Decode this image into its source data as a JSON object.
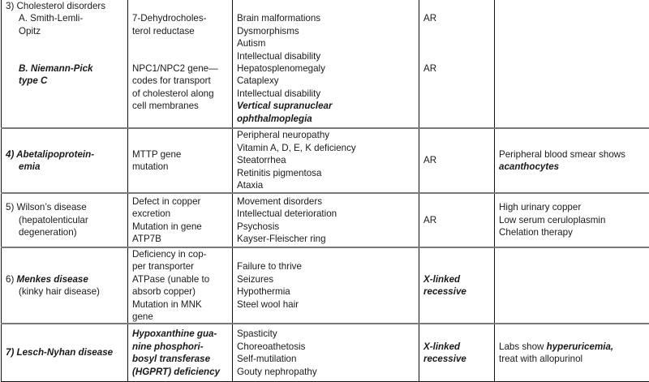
{
  "table": {
    "rows": [
      {
        "cells": [
          [
            [
              {
                "t": "3) Cholesterol disorders"
              }
            ],
            [
              {
                "t": "A. Smith-Lemli-",
                "i": 1
              }
            ],
            [
              {
                "t": "Opitz",
                "i": 1
              }
            ],
            [],
            [],
            [
              {
                "t": "B. Niemann-Pick",
                "i": 1,
                "b": 1
              }
            ],
            [
              {
                "t": "type C",
                "i": 1,
                "b": 1
              }
            ]
          ],
          [
            [],
            [
              {
                "t": "7-Dehydrocholes-"
              }
            ],
            [
              {
                "t": "terol reductase"
              }
            ],
            [],
            [],
            [
              {
                "t": "NPC1/NPC2 gene—"
              }
            ],
            [
              {
                "t": "codes for transport"
              }
            ],
            [
              {
                "t": "of cholesterol along"
              }
            ],
            [
              {
                "t": "cell membranes"
              }
            ]
          ],
          [
            [],
            [
              {
                "t": "Brain malformations"
              }
            ],
            [
              {
                "t": "Dysmorphisms"
              }
            ],
            [
              {
                "t": "Autism"
              }
            ],
            [
              {
                "t": "Intellectual disability"
              }
            ],
            [
              {
                "t": "Hepatosplenomegaly"
              }
            ],
            [
              {
                "t": "Cataplexy"
              }
            ],
            [
              {
                "t": "Intellectual disability"
              }
            ],
            [
              {
                "t": "Vertical supranuclear",
                "b": 1
              }
            ],
            [
              {
                "t": "ophthalmoplegia",
                "b": 1
              }
            ]
          ],
          [
            [],
            [
              {
                "t": "AR"
              }
            ],
            [],
            [],
            [],
            [
              {
                "t": "AR"
              }
            ]
          ],
          []
        ]
      },
      {
        "cells": [
          [
            [
              {
                "t": "4) Abetalipoprotein-",
                "b": 1
              }
            ],
            [
              {
                "t": "emia",
                "i": 1,
                "b": 1
              }
            ]
          ],
          [
            [
              {
                "t": "MTTP gene"
              }
            ],
            [
              {
                "t": "mutation"
              }
            ]
          ],
          [
            [
              {
                "t": "Peripheral neuropathy"
              }
            ],
            [
              {
                "t": "Vitamin A, D, E, K deficiency"
              }
            ],
            [
              {
                "t": "Steatorrhea"
              }
            ],
            [
              {
                "t": "Retinitis pigmentosa"
              }
            ],
            [
              {
                "t": "Ataxia"
              }
            ]
          ],
          [
            [
              {
                "t": "AR"
              }
            ]
          ],
          [
            [
              {
                "t": "Peripheral blood smear shows"
              }
            ],
            [
              {
                "t": "acanthocytes",
                "b": 1
              }
            ]
          ]
        ]
      },
      {
        "cells": [
          [
            [
              {
                "t": "5) Wilson’s disease"
              }
            ],
            [
              {
                "t": "(hepatolenticular",
                "i": 1
              }
            ],
            [
              {
                "t": "degeneration)",
                "i": 1
              }
            ]
          ],
          [
            [
              {
                "t": "Defect in copper"
              }
            ],
            [
              {
                "t": "excretion"
              }
            ],
            [
              {
                "t": "Mutation in gene"
              }
            ],
            [
              {
                "t": "ATP7B"
              }
            ]
          ],
          [
            [
              {
                "t": "Movement disorders"
              }
            ],
            [
              {
                "t": "Intellectual deterioration"
              }
            ],
            [
              {
                "t": "Psychosis"
              }
            ],
            [
              {
                "t": "Kayser-Fleischer ring"
              }
            ]
          ],
          [
            [
              {
                "t": "AR"
              }
            ]
          ],
          [
            [
              {
                "t": "High urinary copper"
              }
            ],
            [
              {
                "t": "Low serum ceruloplasmin"
              }
            ],
            [
              {
                "t": "Chelation therapy"
              }
            ]
          ]
        ]
      },
      {
        "cells": [
          [
            [
              {
                "t": "6) "
              },
              {
                "t": "Menkes disease",
                "b": 1
              }
            ],
            [
              {
                "t": "(kinky hair disease)",
                "i": 1
              }
            ]
          ],
          [
            [
              {
                "t": "Deficiency in cop-"
              }
            ],
            [
              {
                "t": "per transporter"
              }
            ],
            [
              {
                "t": "ATPase (unable to"
              }
            ],
            [
              {
                "t": "absorb copper)"
              }
            ],
            [
              {
                "t": "Mutation in MNK"
              }
            ],
            [
              {
                "t": "gene"
              }
            ]
          ],
          [
            [
              {
                "t": "Failure to thrive"
              }
            ],
            [
              {
                "t": "Seizures"
              }
            ],
            [
              {
                "t": "Hypothermia"
              }
            ],
            [
              {
                "t": "Steel wool hair"
              }
            ]
          ],
          [
            [
              {
                "t": "X-linked",
                "b": 1
              }
            ],
            [
              {
                "t": "recessive",
                "b": 1
              }
            ]
          ],
          []
        ]
      },
      {
        "cells": [
          [
            [
              {
                "t": "7) Lesch-Nyhan disease",
                "b": 1
              }
            ]
          ],
          [
            [
              {
                "t": "Hypoxanthine gua-",
                "b": 1
              }
            ],
            [
              {
                "t": "nine phosphori-",
                "b": 1
              }
            ],
            [
              {
                "t": "bosyl transferase",
                "b": 1
              }
            ],
            [
              {
                "t": "(HGPRT) deficiency",
                "b": 1
              }
            ]
          ],
          [
            [
              {
                "t": "Spasticity"
              }
            ],
            [
              {
                "t": "Choreoathetosis"
              }
            ],
            [
              {
                "t": "Self-mutilation"
              }
            ],
            [
              {
                "t": "Gouty nephropathy"
              }
            ]
          ],
          [
            [
              {
                "t": "X-linked",
                "b": 1
              }
            ],
            [
              {
                "t": "recessive",
                "b": 1
              }
            ]
          ],
          [
            [
              {
                "t": "Labs show "
              },
              {
                "t": "hyperuricemia,",
                "b": 1
              }
            ],
            [
              {
                "t": "treat with allopurinol"
              }
            ]
          ]
        ]
      }
    ]
  }
}
